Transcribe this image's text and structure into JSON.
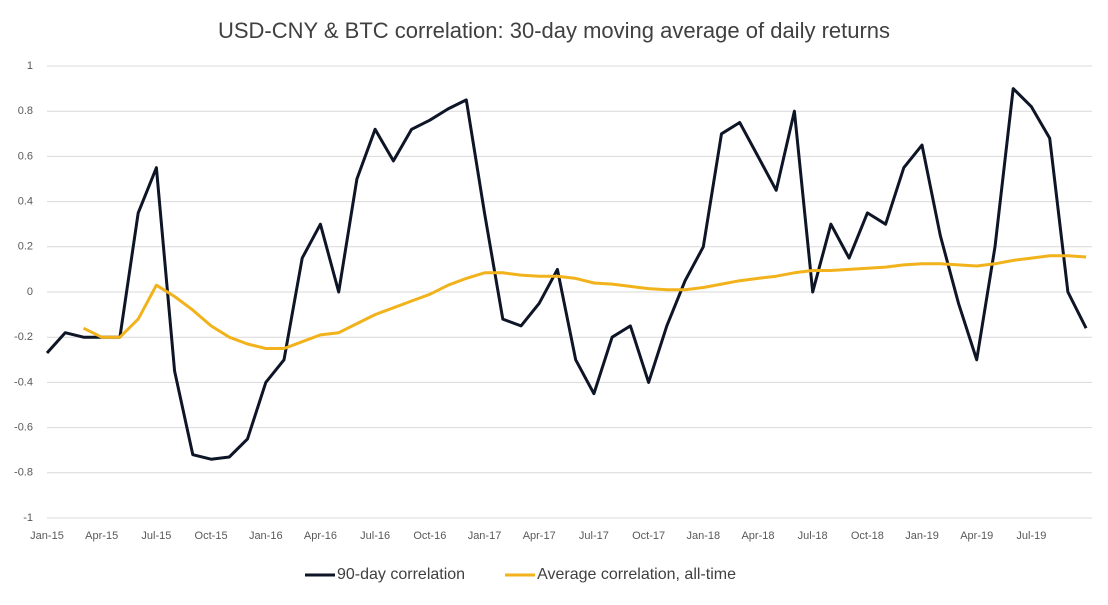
{
  "chart_data": {
    "type": "line",
    "title": "USD-CNY & BTC correlation: 30-day moving average of daily returns",
    "categories": [
      "Jan-15",
      null,
      null,
      "Apr-15",
      null,
      null,
      "Jul-15",
      null,
      null,
      "Oct-15",
      null,
      null,
      "Jan-16",
      null,
      null,
      "Apr-16",
      null,
      null,
      "Jul-16",
      null,
      null,
      "Oct-16",
      null,
      null,
      "Jan-17",
      null,
      null,
      "Apr-17",
      null,
      null,
      "Jul-17",
      null,
      null,
      "Oct-17",
      null,
      null,
      "Jan-18",
      null,
      null,
      "Apr-18",
      null,
      null,
      "Jul-18",
      null,
      null,
      "Oct-18",
      null,
      null,
      "Jan-19",
      null,
      null,
      "Apr-19",
      null,
      null,
      "Jul-19",
      null,
      null,
      null
    ],
    "series": [
      {
        "name": "90-day correlation",
        "color": "#0d1526",
        "values": [
          -0.27,
          -0.18,
          -0.2,
          -0.2,
          -0.2,
          0.35,
          0.55,
          -0.35,
          -0.72,
          -0.74,
          -0.73,
          -0.65,
          -0.4,
          -0.3,
          0.15,
          0.3,
          0.0,
          0.5,
          0.72,
          0.58,
          0.72,
          0.76,
          0.81,
          0.85,
          0.35,
          -0.12,
          -0.15,
          -0.05,
          0.1,
          -0.3,
          -0.45,
          -0.2,
          -0.15,
          -0.4,
          -0.15,
          0.05,
          0.2,
          0.7,
          0.75,
          0.6,
          0.45,
          0.8,
          0.0,
          0.3,
          0.15,
          0.35,
          0.3,
          0.55,
          0.65,
          0.25,
          -0.05,
          -0.3,
          0.2,
          0.9,
          0.82,
          0.68,
          0.0,
          -0.16
        ]
      },
      {
        "name": "Average correlation, all-time",
        "color": "#f2b21b",
        "values": [
          null,
          null,
          -0.16,
          -0.2,
          -0.2,
          -0.12,
          0.03,
          -0.02,
          -0.08,
          -0.15,
          -0.2,
          -0.23,
          -0.25,
          -0.25,
          -0.22,
          -0.19,
          -0.18,
          -0.14,
          -0.1,
          -0.07,
          -0.04,
          -0.01,
          0.03,
          0.06,
          0.085,
          0.085,
          0.075,
          0.07,
          0.07,
          0.06,
          0.04,
          0.035,
          0.025,
          0.015,
          0.01,
          0.01,
          0.02,
          0.035,
          0.05,
          0.06,
          0.07,
          0.085,
          0.095,
          0.095,
          0.1,
          0.105,
          0.11,
          0.12,
          0.125,
          0.125,
          0.12,
          0.115,
          0.125,
          0.14,
          0.15,
          0.16,
          0.16,
          0.155
        ]
      }
    ],
    "ylim": [
      -1,
      1
    ],
    "yticks": [
      -1,
      -0.8,
      -0.6,
      -0.4,
      -0.2,
      0,
      0.2,
      0.4,
      0.6,
      0.8,
      1
    ],
    "grid": true,
    "legend": "bottom"
  }
}
